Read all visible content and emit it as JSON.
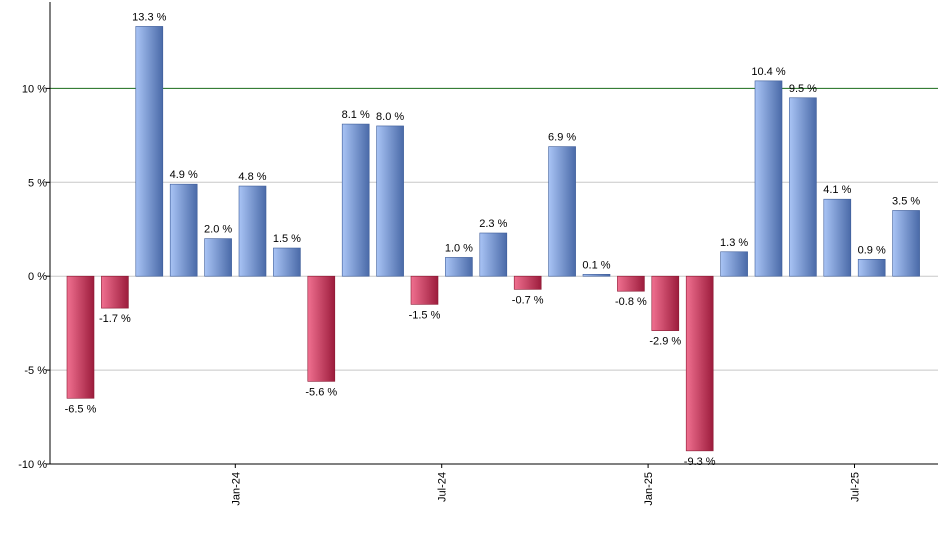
{
  "chart_data": {
    "type": "bar",
    "title": "",
    "xlabel": "",
    "ylabel": "",
    "ylim": [
      -10,
      14.6
    ],
    "yticks": [
      -10,
      -5,
      0,
      5,
      10
    ],
    "ytick_labels": [
      "-10 %",
      "-5 %",
      "0 %",
      "5 %",
      "10 %"
    ],
    "reference_line": 10,
    "grid": true,
    "x_labels": [
      {
        "index": 4.5,
        "label": "Jan-24"
      },
      {
        "index": 10.5,
        "label": "Jul-24"
      },
      {
        "index": 16.5,
        "label": "Jan-25"
      },
      {
        "index": 22.5,
        "label": "Jul-25"
      }
    ],
    "values": [
      -6.5,
      -1.7,
      13.3,
      4.9,
      2.0,
      4.8,
      1.5,
      -5.6,
      8.1,
      8.0,
      -1.5,
      1.0,
      2.3,
      -0.7,
      6.9,
      0.1,
      -0.8,
      -2.9,
      -9.3,
      1.3,
      10.4,
      9.5,
      4.1,
      0.9,
      3.5
    ],
    "value_labels": [
      "-6.5 %",
      "-1.7 %",
      "13.3 %",
      "4.9 %",
      "2.0 %",
      "4.8 %",
      "1.5 %",
      "-5.6 %",
      "8.1 %",
      "8.0 %",
      "-1.5 %",
      "1.0 %",
      "2.3 %",
      "-0.7 %",
      "6.9 %",
      "0.1 %",
      "-0.8 %",
      "-2.9 %",
      "-9.3 %",
      "1.3 %",
      "10.4 %",
      "9.5 %",
      "4.1 %",
      "0.9 %",
      "3.5 %"
    ],
    "colors": {
      "positive_light": "#a9c4f5",
      "positive_dark": "#4a6aa8",
      "negative_light": "#f07090",
      "negative_dark": "#9c1c3c",
      "reference_line": "#1a6b1a",
      "grid": "#c8c8c8",
      "axis": "#000000"
    }
  }
}
